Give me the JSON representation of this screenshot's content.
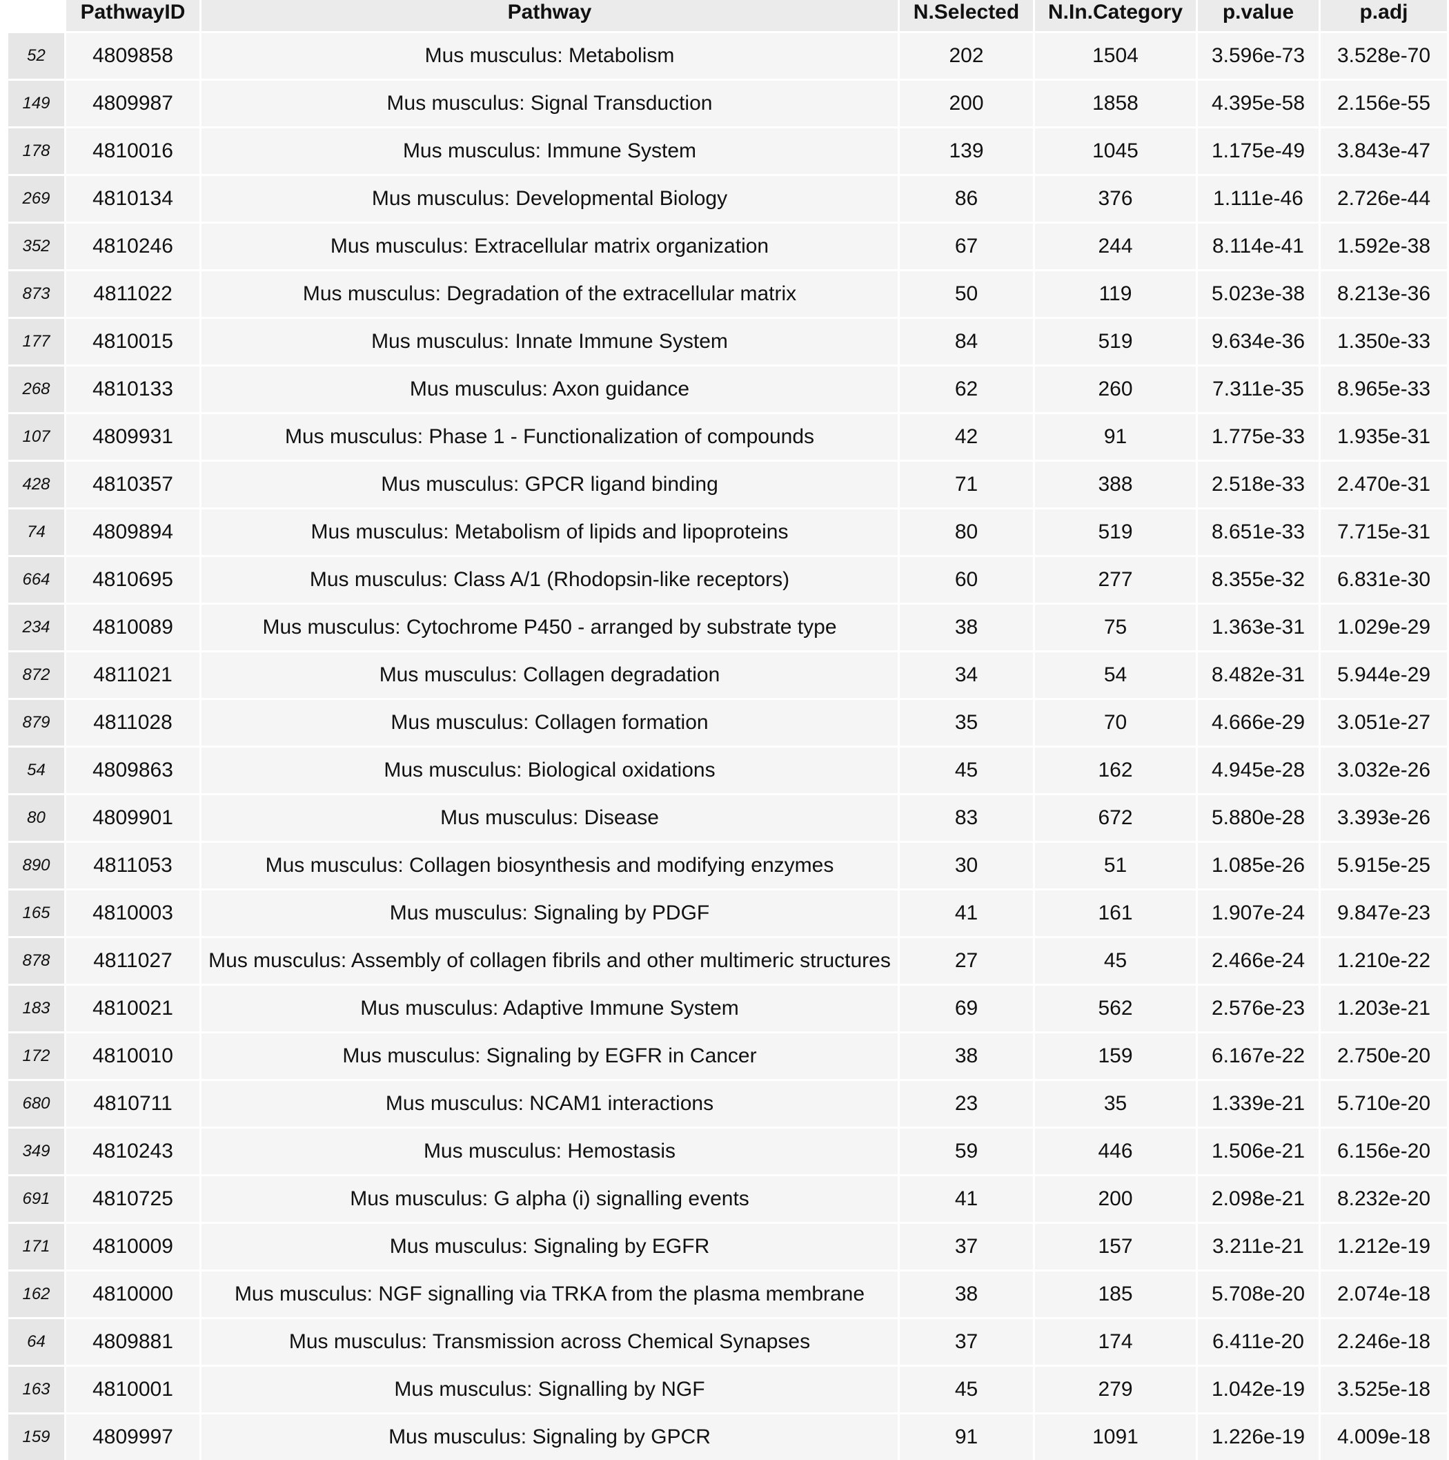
{
  "table": {
    "columns": [
      "",
      "PathwayID",
      "Pathway",
      "N.Selected",
      "N.In.Category",
      "p.value",
      "p.adj"
    ],
    "rows": [
      [
        "52",
        "4809858",
        "Mus musculus: Metabolism",
        "202",
        "1504",
        "3.596e-73",
        "3.528e-70"
      ],
      [
        "149",
        "4809987",
        "Mus musculus: Signal Transduction",
        "200",
        "1858",
        "4.395e-58",
        "2.156e-55"
      ],
      [
        "178",
        "4810016",
        "Mus musculus: Immune System",
        "139",
        "1045",
        "1.175e-49",
        "3.843e-47"
      ],
      [
        "269",
        "4810134",
        "Mus musculus: Developmental Biology",
        "86",
        "376",
        "1.111e-46",
        "2.726e-44"
      ],
      [
        "352",
        "4810246",
        "Mus musculus: Extracellular matrix organization",
        "67",
        "244",
        "8.114e-41",
        "1.592e-38"
      ],
      [
        "873",
        "4811022",
        "Mus musculus: Degradation of the extracellular matrix",
        "50",
        "119",
        "5.023e-38",
        "8.213e-36"
      ],
      [
        "177",
        "4810015",
        "Mus musculus: Innate Immune System",
        "84",
        "519",
        "9.634e-36",
        "1.350e-33"
      ],
      [
        "268",
        "4810133",
        "Mus musculus: Axon guidance",
        "62",
        "260",
        "7.311e-35",
        "8.965e-33"
      ],
      [
        "107",
        "4809931",
        "Mus musculus: Phase 1 - Functionalization of compounds",
        "42",
        "91",
        "1.775e-33",
        "1.935e-31"
      ],
      [
        "428",
        "4810357",
        "Mus musculus: GPCR ligand binding",
        "71",
        "388",
        "2.518e-33",
        "2.470e-31"
      ],
      [
        "74",
        "4809894",
        "Mus musculus: Metabolism of lipids and lipoproteins",
        "80",
        "519",
        "8.651e-33",
        "7.715e-31"
      ],
      [
        "664",
        "4810695",
        "Mus musculus: Class A/1 (Rhodopsin-like receptors)",
        "60",
        "277",
        "8.355e-32",
        "6.831e-30"
      ],
      [
        "234",
        "4810089",
        "Mus musculus: Cytochrome P450 - arranged by substrate type",
        "38",
        "75",
        "1.363e-31",
        "1.029e-29"
      ],
      [
        "872",
        "4811021",
        "Mus musculus: Collagen degradation",
        "34",
        "54",
        "8.482e-31",
        "5.944e-29"
      ],
      [
        "879",
        "4811028",
        "Mus musculus: Collagen formation",
        "35",
        "70",
        "4.666e-29",
        "3.051e-27"
      ],
      [
        "54",
        "4809863",
        "Mus musculus: Biological oxidations",
        "45",
        "162",
        "4.945e-28",
        "3.032e-26"
      ],
      [
        "80",
        "4809901",
        "Mus musculus: Disease",
        "83",
        "672",
        "5.880e-28",
        "3.393e-26"
      ],
      [
        "890",
        "4811053",
        "Mus musculus: Collagen biosynthesis and modifying enzymes",
        "30",
        "51",
        "1.085e-26",
        "5.915e-25"
      ],
      [
        "165",
        "4810003",
        "Mus musculus: Signaling by PDGF",
        "41",
        "161",
        "1.907e-24",
        "9.847e-23"
      ],
      [
        "878",
        "4811027",
        "Mus musculus: Assembly of collagen fibrils and other multimeric structures",
        "27",
        "45",
        "2.466e-24",
        "1.210e-22"
      ],
      [
        "183",
        "4810021",
        "Mus musculus: Adaptive Immune System",
        "69",
        "562",
        "2.576e-23",
        "1.203e-21"
      ],
      [
        "172",
        "4810010",
        "Mus musculus: Signaling by EGFR in Cancer",
        "38",
        "159",
        "6.167e-22",
        "2.750e-20"
      ],
      [
        "680",
        "4810711",
        "Mus musculus: NCAM1 interactions",
        "23",
        "35",
        "1.339e-21",
        "5.710e-20"
      ],
      [
        "349",
        "4810243",
        "Mus musculus: Hemostasis",
        "59",
        "446",
        "1.506e-21",
        "6.156e-20"
      ],
      [
        "691",
        "4810725",
        "Mus musculus: G alpha (i) signalling events",
        "41",
        "200",
        "2.098e-21",
        "8.232e-20"
      ],
      [
        "171",
        "4810009",
        "Mus musculus: Signaling by EGFR",
        "37",
        "157",
        "3.211e-21",
        "1.212e-19"
      ],
      [
        "162",
        "4810000",
        "Mus musculus: NGF signalling via TRKA from the plasma membrane",
        "38",
        "185",
        "5.708e-20",
        "2.074e-18"
      ],
      [
        "64",
        "4809881",
        "Mus musculus: Transmission across Chemical Synapses",
        "37",
        "174",
        "6.411e-20",
        "2.246e-18"
      ],
      [
        "163",
        "4810001",
        "Mus musculus: Signalling by NGF",
        "45",
        "279",
        "1.042e-19",
        "3.525e-18"
      ],
      [
        "159",
        "4809997",
        "Mus musculus: Signaling by GPCR",
        "91",
        "1091",
        "1.226e-19",
        "4.009e-18"
      ]
    ]
  }
}
